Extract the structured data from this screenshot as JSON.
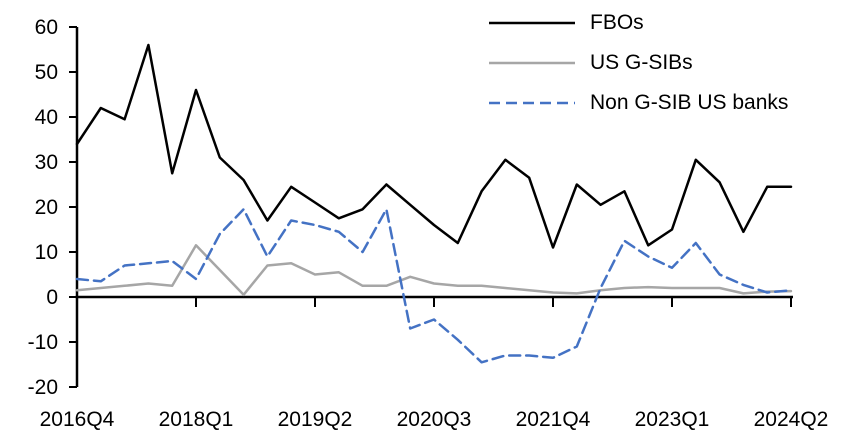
{
  "chart_data": {
    "type": "line",
    "categories": [
      "2016Q4",
      "2017Q1",
      "2017Q2",
      "2017Q3",
      "2017Q4",
      "2018Q1",
      "2018Q2",
      "2018Q3",
      "2018Q4",
      "2019Q1",
      "2019Q2",
      "2019Q3",
      "2019Q4",
      "2020Q1",
      "2020Q2",
      "2020Q3",
      "2020Q4",
      "2021Q1",
      "2021Q2",
      "2021Q3",
      "2021Q4",
      "2022Q1",
      "2022Q2",
      "2022Q3",
      "2022Q4",
      "2023Q1",
      "2023Q2",
      "2023Q3",
      "2023Q4",
      "2024Q1",
      "2024Q2"
    ],
    "x_tick_labels": [
      "2016Q4",
      "2018Q1",
      "2019Q2",
      "2020Q3",
      "2021Q4",
      "2023Q1",
      "2024Q2"
    ],
    "x_tick_indices": [
      0,
      5,
      10,
      15,
      20,
      25,
      30
    ],
    "y_ticks": [
      60,
      50,
      40,
      30,
      20,
      10,
      0,
      -10,
      -20
    ],
    "ylim": [
      -20,
      60
    ],
    "grid": false,
    "legend_position": "top-right",
    "series": [
      {
        "name": "FBOs",
        "color": "#000000",
        "style": "solid",
        "values": [
          34,
          42,
          39.5,
          56,
          27.5,
          46,
          31,
          26,
          17,
          24.5,
          21,
          17.5,
          19.5,
          25,
          20.5,
          16,
          12,
          23.5,
          30.5,
          26.5,
          11,
          25,
          20.5,
          23.5,
          11.5,
          15,
          30.5,
          25.5,
          14.5,
          24.5,
          24.5
        ]
      },
      {
        "name": "US G-SIBs",
        "color": "#A6A6A6",
        "style": "solid",
        "values": [
          1.5,
          2,
          2.5,
          3,
          2.5,
          11.5,
          6,
          0.5,
          7,
          7.5,
          5,
          5.5,
          2.5,
          2.5,
          4.5,
          3,
          2.5,
          2.5,
          2,
          1.5,
          1,
          0.8,
          1.5,
          2,
          2.2,
          2,
          2,
          2,
          0.8,
          1.2,
          1.3
        ]
      },
      {
        "name": "Non G-SIB US banks",
        "color": "#4472C4",
        "style": "dashed",
        "values": [
          4,
          3.5,
          7,
          7.5,
          8,
          4,
          14,
          19.5,
          9,
          17,
          16,
          14.5,
          10,
          19.5,
          -7,
          -5,
          -9.5,
          -14.5,
          -13,
          -13,
          -13.5,
          -11,
          2,
          12.5,
          9,
          6.5,
          12,
          5,
          2.7,
          1,
          1.5
        ]
      }
    ]
  },
  "colors": {
    "axis": "#000000",
    "background": "#FFFFFF",
    "fbos_line": "#000000",
    "us_gsib_line": "#A6A6A6",
    "non_gsib_line": "#4472C4"
  }
}
